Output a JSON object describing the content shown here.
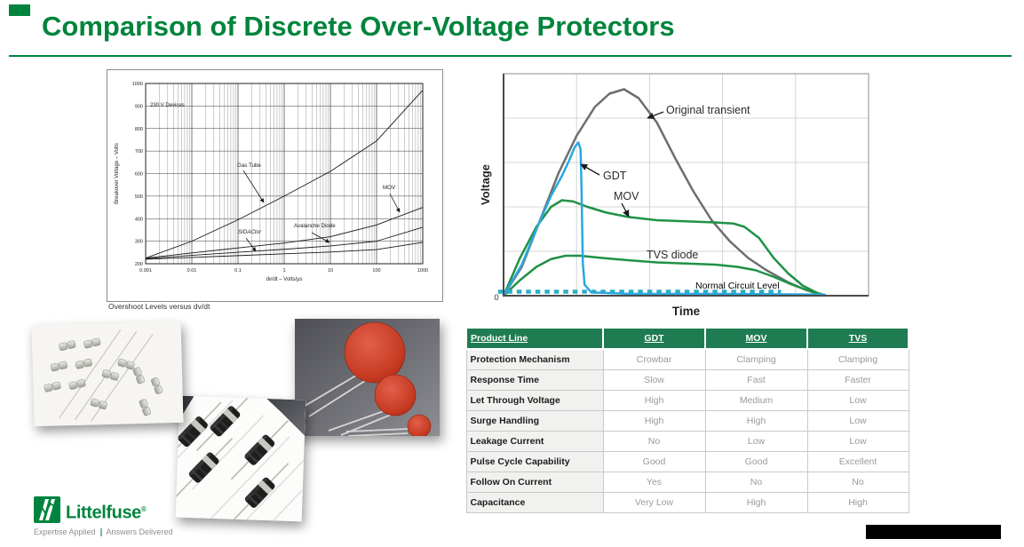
{
  "slide": {
    "title": "Comparison of Discrete Over-Voltage Protectors"
  },
  "colors": {
    "brand_green": "#00843D",
    "table_header_green": "#1F7C52",
    "transient_gray": "#6d6e71",
    "gdt_blue": "#29a8e0",
    "suppressor_green": "#1f9246",
    "normal_level_teal": "#2aaec4"
  },
  "chart_data": [
    {
      "type": "line",
      "title": "Overshoot Levels versus dv/dt",
      "xlabel": "dv/dt – Volts/µs",
      "ylabel": "Breakover Voltage – Volts",
      "xscale": "log",
      "xlim": [
        0.001,
        1000
      ],
      "ylim": [
        200,
        1000
      ],
      "x_ticks": [
        "0.001",
        "0.01",
        "0.1",
        "1",
        "10",
        "100",
        "1000"
      ],
      "y_ticks": [
        200,
        300,
        400,
        500,
        600,
        700,
        800,
        900,
        1000
      ],
      "annotation": "230 V Devices",
      "x": [
        0.001,
        0.01,
        0.1,
        1,
        10,
        100,
        1000
      ],
      "series": [
        {
          "name": "Gas Tube",
          "values": [
            225,
            300,
            395,
            500,
            610,
            745,
            970
          ]
        },
        {
          "name": "MOV",
          "values": [
            225,
            248,
            270,
            292,
            320,
            372,
            450
          ]
        },
        {
          "name": "Avalanche Diode",
          "values": [
            222,
            237,
            251,
            264,
            279,
            300,
            362
          ]
        },
        {
          "name": "SIDACtor",
          "values": [
            220,
            228,
            236,
            244,
            252,
            263,
            295
          ]
        }
      ],
      "grid": "log major and minor verticals, horizontal lines every 100 V"
    },
    {
      "type": "line",
      "title": "",
      "xlabel": "Time",
      "ylabel": "Voltage",
      "origin_label": "0",
      "x_range": [
        0,
        1
      ],
      "y_range": [
        0,
        1
      ],
      "grid": "light gray, 20% spacing",
      "series": [
        {
          "name": "Original transient",
          "color": "#6d6e71",
          "points": [
            [
              0,
              0
            ],
            [
              0.05,
              0.13
            ],
            [
              0.1,
              0.34
            ],
            [
              0.15,
              0.55
            ],
            [
              0.2,
              0.72
            ],
            [
              0.25,
              0.85
            ],
            [
              0.29,
              0.91
            ],
            [
              0.33,
              0.93
            ],
            [
              0.37,
              0.89
            ],
            [
              0.42,
              0.78
            ],
            [
              0.47,
              0.62
            ],
            [
              0.52,
              0.47
            ],
            [
              0.57,
              0.34
            ],
            [
              0.62,
              0.245
            ],
            [
              0.67,
              0.17
            ],
            [
              0.72,
              0.115
            ],
            [
              0.78,
              0.06
            ],
            [
              0.83,
              0.025
            ],
            [
              0.88,
              0.003
            ]
          ]
        },
        {
          "name": "GDT",
          "color": "#29a8e0",
          "points": [
            [
              0,
              0
            ],
            [
              0.05,
              0.14
            ],
            [
              0.09,
              0.3
            ],
            [
              0.13,
              0.45
            ],
            [
              0.16,
              0.54
            ],
            [
              0.18,
              0.61
            ],
            [
              0.195,
              0.67
            ],
            [
              0.205,
              0.69
            ],
            [
              0.211,
              0.66
            ],
            [
              0.214,
              0.45
            ],
            [
              0.217,
              0.15
            ],
            [
              0.222,
              0.05
            ],
            [
              0.24,
              0.015
            ],
            [
              0.35,
              0.008
            ],
            [
              0.6,
              0.008
            ],
            [
              0.88,
              0.005
            ]
          ]
        },
        {
          "name": "MOV",
          "color": "#1f9246",
          "points": [
            [
              0,
              0
            ],
            [
              0.045,
              0.17
            ],
            [
              0.09,
              0.31
            ],
            [
              0.13,
              0.4
            ],
            [
              0.16,
              0.43
            ],
            [
              0.19,
              0.425
            ],
            [
              0.23,
              0.4
            ],
            [
              0.28,
              0.375
            ],
            [
              0.34,
              0.355
            ],
            [
              0.42,
              0.34
            ],
            [
              0.5,
              0.335
            ],
            [
              0.58,
              0.33
            ],
            [
              0.63,
              0.325
            ],
            [
              0.66,
              0.31
            ],
            [
              0.7,
              0.26
            ],
            [
              0.74,
              0.17
            ],
            [
              0.78,
              0.1
            ],
            [
              0.82,
              0.045
            ],
            [
              0.86,
              0.012
            ],
            [
              0.88,
              0.0
            ]
          ]
        },
        {
          "name": "TVS diode",
          "color": "#1f9246",
          "points": [
            [
              0,
              0
            ],
            [
              0.045,
              0.07
            ],
            [
              0.09,
              0.13
            ],
            [
              0.13,
              0.165
            ],
            [
              0.17,
              0.18
            ],
            [
              0.21,
              0.18
            ],
            [
              0.27,
              0.17
            ],
            [
              0.34,
              0.16
            ],
            [
              0.42,
              0.15
            ],
            [
              0.5,
              0.145
            ],
            [
              0.58,
              0.14
            ],
            [
              0.64,
              0.13
            ],
            [
              0.69,
              0.115
            ],
            [
              0.74,
              0.085
            ],
            [
              0.79,
              0.05
            ],
            [
              0.84,
              0.02
            ],
            [
              0.87,
              0.004
            ]
          ]
        },
        {
          "name": "Normal Circuit Level",
          "color": "#2aaec4",
          "style": "dotted",
          "points": [
            [
              -0.015,
              0.018
            ],
            [
              0.76,
              0.018
            ]
          ]
        }
      ]
    }
  ],
  "table": {
    "headers": [
      "Product Line",
      "GDT",
      "MOV",
      "TVS"
    ],
    "rows": [
      {
        "label": "Protection Mechanism",
        "values": [
          "Crowbar",
          "Clamping",
          "Clamping"
        ]
      },
      {
        "label": "Response Time",
        "values": [
          "Slow",
          "Fast",
          "Faster"
        ]
      },
      {
        "label": "Let Through Voltage",
        "values": [
          "High",
          "Medium",
          "Low"
        ]
      },
      {
        "label": "Surge Handling",
        "values": [
          "High",
          "High",
          "Low"
        ]
      },
      {
        "label": "Leakage Current",
        "values": [
          "No",
          "Low",
          "Low"
        ]
      },
      {
        "label": "Pulse Cycle Capability",
        "values": [
          "Good",
          "Good",
          "Excellent"
        ]
      },
      {
        "label": "Follow On Current",
        "values": [
          "Yes",
          "No",
          "No"
        ]
      },
      {
        "label": "Capacitance",
        "values": [
          "Very Low",
          "High",
          "High"
        ]
      }
    ]
  },
  "logo": {
    "brand": "Littelfuse",
    "reg": "®",
    "tagline_a": "Expertise Applied",
    "tagline_b": "Answers Delivered"
  }
}
